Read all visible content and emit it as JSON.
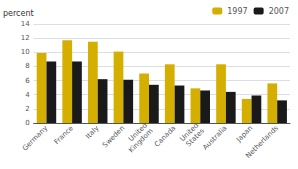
{
  "chart_data": {
    "type": "bar",
    "ylabel": "percent",
    "categories": [
      "Germany",
      "France",
      "Italy",
      "Sweden",
      "United\nKingdom",
      "Canada",
      "United\nStates",
      "Australia",
      "Japan",
      "Netherlands"
    ],
    "series": [
      {
        "name": "1997",
        "color": "#D4AF00",
        "values": [
          9.9,
          11.7,
          11.5,
          10.1,
          7.0,
          8.3,
          4.9,
          8.3,
          3.4,
          5.6
        ]
      },
      {
        "name": "2007",
        "color": "#1a1a1a",
        "values": [
          8.7,
          8.7,
          6.2,
          6.1,
          5.4,
          5.3,
          4.6,
          4.4,
          3.9,
          3.2
        ]
      }
    ],
    "ylim": [
      0,
      14
    ],
    "yticks": [
      0,
      2,
      4,
      6,
      8,
      10,
      12,
      14
    ],
    "grid": true,
    "legend": "upper right"
  }
}
